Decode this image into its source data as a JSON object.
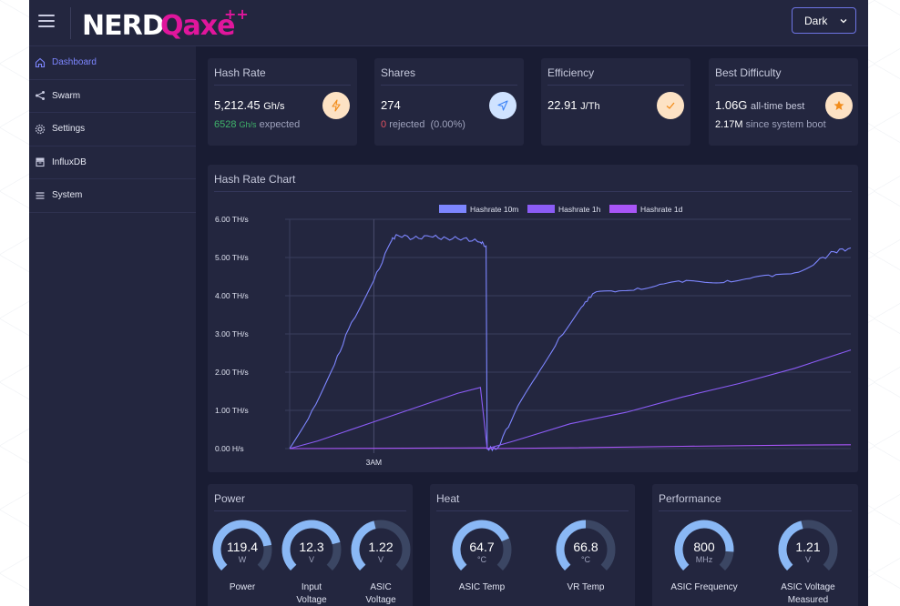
{
  "header": {
    "logo_text": "NERDQaxe++",
    "theme_select": "Dark"
  },
  "sidebar": {
    "items": [
      {
        "label": "Dashboard",
        "icon": "home-icon"
      },
      {
        "label": "Swarm",
        "icon": "share-icon"
      },
      {
        "label": "Settings",
        "icon": "gear-icon"
      },
      {
        "label": "InfluxDB",
        "icon": "database-icon"
      },
      {
        "label": "System",
        "icon": "list-icon"
      }
    ]
  },
  "stats": {
    "hashrate": {
      "title": "Hash Rate",
      "value": "5,212.45",
      "unit": "Gh/s",
      "expected_value": "6528",
      "expected_unit": "Gh/s",
      "expected_label": "expected"
    },
    "shares": {
      "title": "Shares",
      "value": "274",
      "rejected_count": "0",
      "rejected_label": "rejected",
      "rejected_pct": "(0.00%)"
    },
    "efficiency": {
      "title": "Efficiency",
      "value": "22.91",
      "unit": "J/Th"
    },
    "best_difficulty": {
      "title": "Best Difficulty",
      "value": "1.06G",
      "value_label": "all-time best",
      "since_value": "2.17M",
      "since_label": "since system boot"
    }
  },
  "colors": {
    "accent": "#7d86ff",
    "hash_badge": "#fde2c4",
    "shares_badge": "#cfe2ff",
    "eff_badge": "#fde2c4",
    "best_badge": "#fde2c4",
    "gauge_fill": "#8ab8f5",
    "gauge_track": "#3b4663"
  },
  "chart_data": {
    "type": "line",
    "title": "Hash Rate Chart",
    "legend": [
      "Hashrate 10m",
      "Hashrate 1h",
      "Hashrate 1d"
    ],
    "legend_colors": [
      "#7d86ff",
      "#8b5cf6",
      "#a855f7"
    ],
    "y_ticks": [
      "6.00 TH/s",
      "5.00 TH/s",
      "4.00 TH/s",
      "3.00 TH/s",
      "2.00 TH/s",
      "1.00 TH/s",
      "0.00 H/s"
    ],
    "ylim": [
      0,
      6
    ],
    "x_tick_label": "3AM",
    "x_tick_position": 0.15,
    "x_range": [
      0,
      1
    ],
    "series": [
      {
        "name": "Hashrate 10m",
        "points": [
          [
            0,
            0
          ],
          [
            0.04,
            1.0
          ],
          [
            0.08,
            2.2
          ],
          [
            0.11,
            3.3
          ],
          [
            0.15,
            4.4
          ],
          [
            0.18,
            5.4
          ],
          [
            0.19,
            5.6
          ],
          [
            0.22,
            5.5
          ],
          [
            0.25,
            5.55
          ],
          [
            0.28,
            5.5
          ],
          [
            0.31,
            5.5
          ],
          [
            0.34,
            5.4
          ],
          [
            0.35,
            5.3
          ],
          [
            0.352,
            0
          ],
          [
            0.37,
            0
          ],
          [
            0.4,
            0.9
          ],
          [
            0.44,
            1.9
          ],
          [
            0.48,
            2.9
          ],
          [
            0.52,
            3.7
          ],
          [
            0.54,
            4.05
          ],
          [
            0.58,
            4.1
          ],
          [
            0.62,
            4.2
          ],
          [
            0.66,
            4.3
          ],
          [
            0.7,
            4.35
          ],
          [
            0.74,
            4.35
          ],
          [
            0.78,
            4.4
          ],
          [
            0.82,
            4.45
          ],
          [
            0.86,
            4.5
          ],
          [
            0.9,
            4.6
          ],
          [
            0.94,
            4.9
          ],
          [
            0.97,
            5.15
          ],
          [
            1.0,
            5.25
          ]
        ]
      },
      {
        "name": "Hashrate 1h",
        "points": [
          [
            0,
            0
          ],
          [
            0.05,
            0.2
          ],
          [
            0.1,
            0.45
          ],
          [
            0.15,
            0.7
          ],
          [
            0.2,
            0.95
          ],
          [
            0.25,
            1.2
          ],
          [
            0.3,
            1.45
          ],
          [
            0.34,
            1.6
          ],
          [
            0.352,
            0
          ],
          [
            0.4,
            0.2
          ],
          [
            0.5,
            0.65
          ],
          [
            0.6,
            0.95
          ],
          [
            0.7,
            1.35
          ],
          [
            0.8,
            1.7
          ],
          [
            0.9,
            2.1
          ],
          [
            1.0,
            2.58
          ]
        ]
      },
      {
        "name": "Hashrate 1d",
        "points": [
          [
            0,
            0
          ],
          [
            0.35,
            0.02
          ],
          [
            0.352,
            0
          ],
          [
            0.5,
            0.02
          ],
          [
            0.7,
            0.06
          ],
          [
            0.9,
            0.09
          ],
          [
            1.0,
            0.1
          ]
        ]
      }
    ]
  },
  "panels": {
    "power": {
      "title": "Power",
      "gauges": [
        {
          "value": "119.4",
          "unit": "W",
          "label": "Power",
          "label2": "",
          "fill": 0.8
        },
        {
          "value": "12.3",
          "unit": "V",
          "label": "Input",
          "label2": "Voltage",
          "fill": 0.78
        },
        {
          "value": "1.22",
          "unit": "V",
          "label": "ASIC",
          "label2": "Voltage",
          "fill": 0.45
        }
      ]
    },
    "heat": {
      "title": "Heat",
      "gauges": [
        {
          "value": "64.7",
          "unit": "°C",
          "label": "ASIC Temp",
          "label2": "",
          "fill": 0.75
        },
        {
          "value": "66.8",
          "unit": "°C",
          "label": "VR Temp",
          "label2": "",
          "fill": 0.5
        }
      ]
    },
    "performance": {
      "title": "Performance",
      "gauges": [
        {
          "value": "800",
          "unit": "MHz",
          "label": "ASIC Frequency",
          "label2": "",
          "fill": 0.85
        },
        {
          "value": "1.21",
          "unit": "V",
          "label": "ASIC Voltage",
          "label2": "Measured",
          "fill": 0.45
        }
      ]
    }
  }
}
